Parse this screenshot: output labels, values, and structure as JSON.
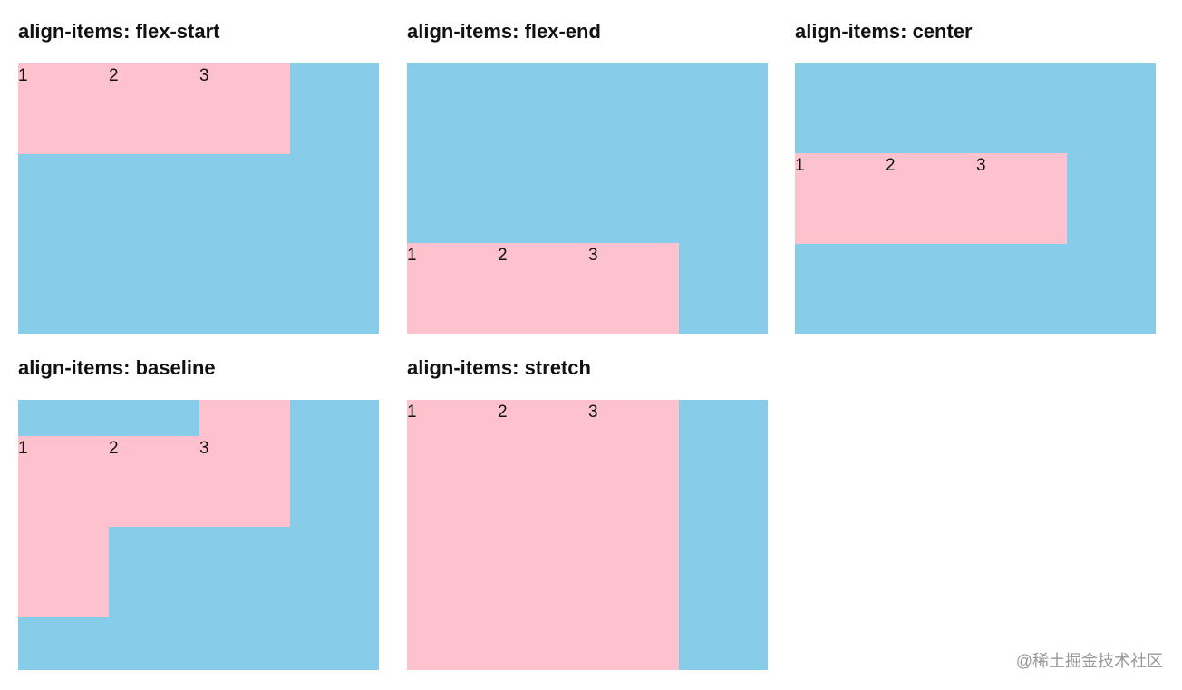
{
  "demos": [
    {
      "title": "align-items: flex-start",
      "items": [
        "1",
        "2",
        "3"
      ]
    },
    {
      "title": "align-items: flex-end",
      "items": [
        "1",
        "2",
        "3"
      ]
    },
    {
      "title": "align-items: center",
      "items": [
        "1",
        "2",
        "3"
      ]
    },
    {
      "title": "align-items: baseline",
      "items": [
        "1",
        "2",
        "3"
      ]
    },
    {
      "title": "align-items: stretch",
      "items": [
        "1",
        "2",
        "3"
      ]
    }
  ],
  "watermark": "@稀土掘金技术社区",
  "colors": {
    "container": "#87cdea",
    "item": "#fec1ce",
    "text": "#111111"
  }
}
